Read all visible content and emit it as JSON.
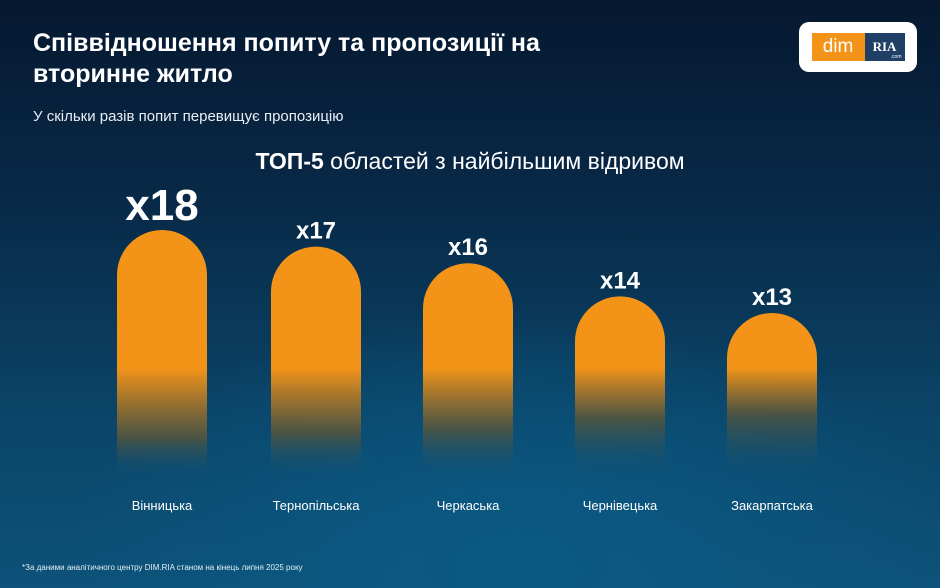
{
  "header": {
    "title": "Співвідношення попиту та пропозиції на вторинне житло",
    "subtitle": "У скільки разів попит перевищує пропозицію"
  },
  "logo": {
    "left_text": "dim",
    "right_text": "RIA",
    "right_suffix": ".com",
    "left_color": "#f39419",
    "right_color": "#1f3f66"
  },
  "chart_title": {
    "bold": "ТОП-5",
    "rest": " областей з найбільшим відривом"
  },
  "chart_data": {
    "type": "bar",
    "title": "ТОП-5 областей з найбільшим відривом",
    "categories": [
      "Вінницька",
      "Тернопільська",
      "Черкаська",
      "Чернівецька",
      "Закарпатська"
    ],
    "values": [
      18,
      17,
      16,
      14,
      13
    ],
    "labels": [
      "x18",
      "x17",
      "x16",
      "x14",
      "x13"
    ],
    "xlabel": "",
    "ylabel": "",
    "grid": false,
    "legend": "none",
    "bar_color": "#f39419"
  },
  "footnote": "*За даними аналітичного центру DIM.RIA станом на кінець липня 2025 року"
}
